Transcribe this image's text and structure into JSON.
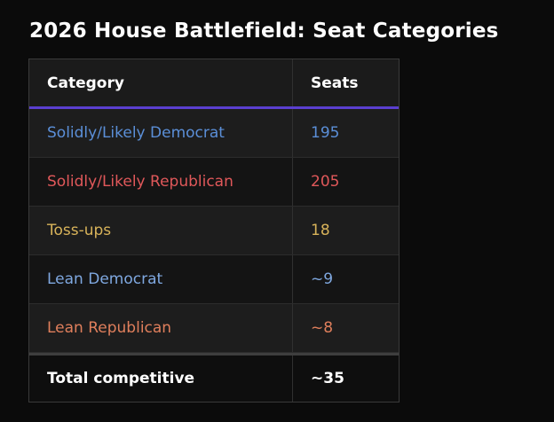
{
  "title": "2026 House Battlefield: Seat Categories",
  "colors": {
    "header_accent": "#5b3fd0",
    "democrat": "#5b8fd8",
    "republican": "#e0585a",
    "tossup": "#d8b35a",
    "lean_democrat": "#7fa8e0",
    "lean_republican": "#e07f5c"
  },
  "table": {
    "headers": [
      "Category",
      "Seats"
    ],
    "rows": [
      {
        "category": "Solidly/Likely Democrat",
        "seats": "195",
        "color": "#5b8fd8"
      },
      {
        "category": "Solidly/Likely Republican",
        "seats": "205",
        "color": "#e0585a"
      },
      {
        "category": "Toss-ups",
        "seats": "18",
        "color": "#d8b35a"
      },
      {
        "category": "Lean Democrat",
        "seats": "~9",
        "color": "#7fa8e0"
      },
      {
        "category": "Lean Republican",
        "seats": "~8",
        "color": "#e07f5c"
      }
    ],
    "total": {
      "category": "Total competitive",
      "seats": "~35"
    }
  }
}
